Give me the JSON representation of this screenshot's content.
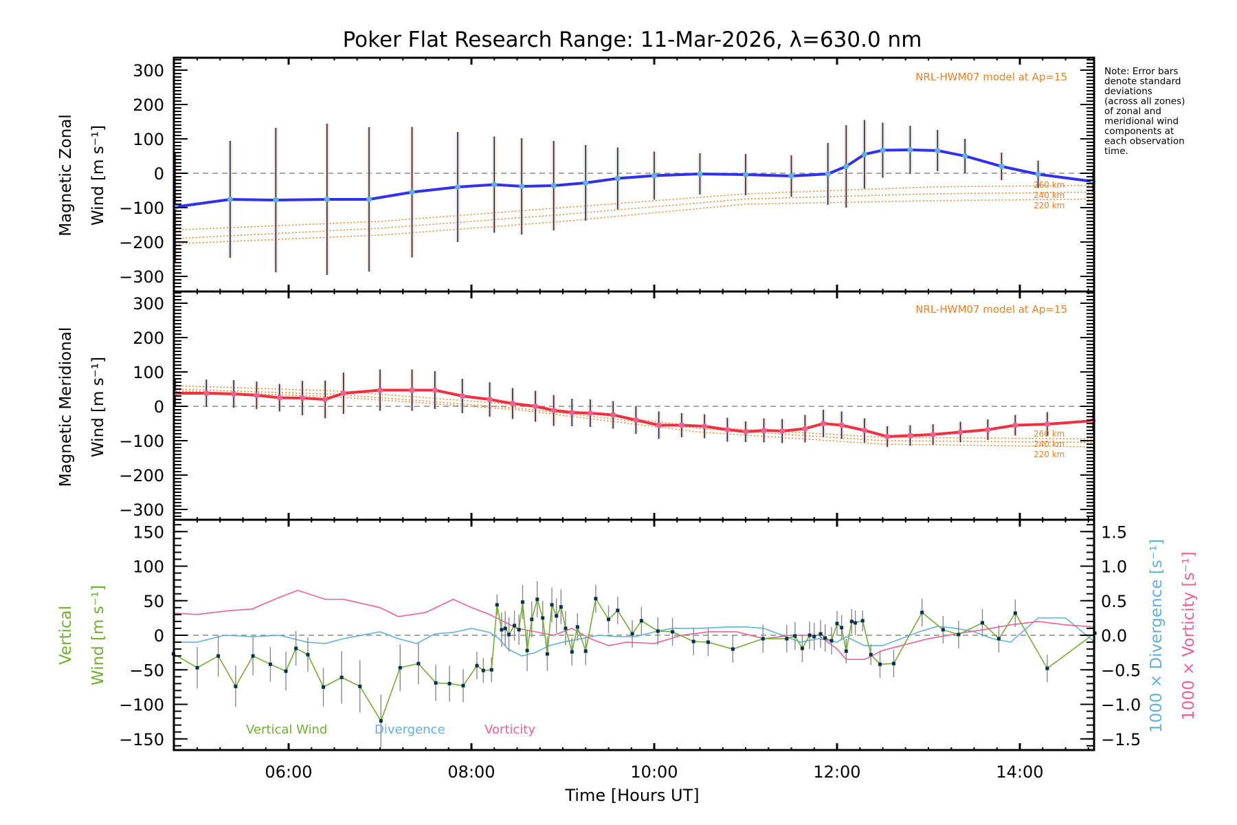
{
  "title": "Poker Flat Research Range: 11-Mar-2026, λ=630.0 nm",
  "note": [
    "Note: Error bars",
    "denote standard",
    "deviations",
    "(across all zones)",
    "of zonal and",
    "meridional wind",
    "components at",
    "each observation",
    "time."
  ],
  "colors": {
    "zonal": "#3030f0",
    "zonal_points": "#60b0e0",
    "meridional": "#f03040",
    "meridional_points": "#f06090",
    "model": "#f08020",
    "vertical": "#70b030",
    "divergence": "#60b0e0",
    "vorticity": "#f06090",
    "errorbar": "#083050",
    "zone_scatter": "#b0b0e0"
  },
  "chart_data": [
    {
      "type": "line",
      "panel": "zonal",
      "ylabel": [
        "Magnetic Zonal",
        "Wind [m s⁻¹]"
      ],
      "ylim": [
        -330,
        330
      ],
      "yticks": [
        -300,
        -200,
        -100,
        0,
        100,
        200,
        300
      ],
      "model_label": "NRL-HWM07 model at Ap=15",
      "series": [
        {
          "name": "Zonal wind",
          "x": [
            4.76,
            5.36,
            5.86,
            6.42,
            6.88,
            7.35,
            7.85,
            8.25,
            8.55,
            8.9,
            9.25,
            9.6,
            10.0,
            10.5,
            11.0,
            11.5,
            11.9,
            12.1,
            12.3,
            12.5,
            12.8,
            13.1,
            13.4,
            13.8,
            14.2,
            14.8
          ],
          "y": [
            -98,
            -76,
            -78,
            -76,
            -76,
            -55,
            -40,
            -33,
            -38,
            -36,
            -28,
            -15,
            -7,
            -2,
            -4,
            -8,
            -2,
            20,
            55,
            67,
            68,
            66,
            50,
            20,
            -3,
            -24
          ],
          "errors": [
            160,
            170,
            210,
            220,
            210,
            190,
            160,
            140,
            140,
            130,
            110,
            90,
            70,
            60,
            60,
            60,
            90,
            120,
            100,
            80,
            70,
            60,
            50,
            40,
            40,
            30
          ]
        },
        {
          "name": "HWM07 260 km",
          "x": [
            4.76,
            7,
            9,
            11,
            13,
            14.8
          ],
          "y": [
            -165,
            -140,
            -100,
            -60,
            -40,
            -35
          ]
        },
        {
          "name": "HWM07 240 km",
          "x": [
            4.76,
            7,
            9,
            11,
            13,
            14.8
          ],
          "y": [
            -190,
            -160,
            -120,
            -75,
            -60,
            -55
          ]
        },
        {
          "name": "HWM07 220 km",
          "x": [
            4.76,
            7,
            9,
            11,
            13,
            14.8
          ],
          "y": [
            -205,
            -180,
            -140,
            -90,
            -80,
            -75
          ]
        }
      ],
      "annotations": [
        "260 km",
        "240 km",
        "220 km"
      ]
    },
    {
      "type": "line",
      "panel": "meridional",
      "ylabel": [
        "Magnetic Meridional",
        "Wind [m s⁻¹]"
      ],
      "ylim": [
        -330,
        330
      ],
      "yticks": [
        -300,
        -200,
        -100,
        0,
        100,
        200,
        300
      ],
      "model_label": "NRL-HWM07 model at Ap=15",
      "series": [
        {
          "name": "Meridional wind",
          "x": [
            4.76,
            5.1,
            5.4,
            5.65,
            5.9,
            6.15,
            6.4,
            6.6,
            7.0,
            7.35,
            7.6,
            7.9,
            8.2,
            8.45,
            8.7,
            8.9,
            9.1,
            9.3,
            9.55,
            9.8,
            10.05,
            10.3,
            10.55,
            10.8,
            11.0,
            11.2,
            11.4,
            11.65,
            11.85,
            12.05,
            12.3,
            12.55,
            12.8,
            13.05,
            13.35,
            13.65,
            13.95,
            14.3,
            14.8
          ],
          "y": [
            38,
            38,
            36,
            32,
            25,
            24,
            20,
            38,
            47,
            47,
            47,
            30,
            20,
            8,
            0,
            -12,
            -18,
            -20,
            -25,
            -40,
            -55,
            -55,
            -58,
            -68,
            -74,
            -70,
            -72,
            -65,
            -50,
            -55,
            -70,
            -88,
            -85,
            -82,
            -75,
            -68,
            -55,
            -52,
            -42
          ],
          "errors": [
            40,
            40,
            40,
            40,
            40,
            50,
            55,
            60,
            60,
            60,
            55,
            50,
            50,
            45,
            45,
            45,
            40,
            40,
            40,
            40,
            40,
            35,
            35,
            35,
            30,
            35,
            35,
            40,
            40,
            40,
            35,
            30,
            30,
            30,
            30,
            30,
            30,
            35,
            30
          ]
        },
        {
          "name": "HWM07 260 km",
          "x": [
            4.76,
            6.5,
            8.5,
            10.5,
            12.5,
            14.8
          ],
          "y": [
            60,
            45,
            5,
            -60,
            -90,
            -95
          ]
        },
        {
          "name": "HWM07 240 km",
          "x": [
            4.76,
            6.5,
            8.5,
            10.5,
            12.5,
            14.8
          ],
          "y": [
            50,
            35,
            -5,
            -65,
            -100,
            -105
          ]
        },
        {
          "name": "HWM07 220 km",
          "x": [
            4.76,
            6.5,
            8.5,
            10.5,
            12.5,
            14.8
          ],
          "y": [
            45,
            28,
            -10,
            -75,
            -110,
            -118
          ]
        }
      ],
      "annotations": [
        "260 km",
        "240 km",
        "220 km"
      ]
    },
    {
      "type": "line",
      "panel": "vertical",
      "ylabel": [
        "Vertical",
        "Wind [m s⁻¹]"
      ],
      "ylabel_right_divergence": "1000 × Divergence [s⁻¹]",
      "ylabel_right_vorticity": "1000 × Vorticity [s⁻¹]",
      "ylim": [
        -165,
        165
      ],
      "yticks": [
        -150,
        -100,
        -50,
        0,
        50,
        100,
        150
      ],
      "y2lim": [
        -1.65,
        1.65
      ],
      "y2ticks": [
        "-1.5",
        "-1.0",
        "-0.5",
        "0.0",
        "0.5",
        "1.0",
        "1.5"
      ],
      "xlabel": "Time [Hours UT]",
      "xlim": [
        4.74,
        14.82
      ],
      "xticks": [
        "06:00",
        "08:00",
        "10:00",
        "12:00",
        "14:00"
      ],
      "xtick_values": [
        6,
        8,
        10,
        12,
        14
      ],
      "legend": [
        "Vertical Wind",
        "Divergence",
        "Vorticity"
      ],
      "legend_position": "bottom-left",
      "series": [
        {
          "name": "Vertical Wind",
          "x": [
            4.74,
            5.0,
            5.23,
            5.42,
            5.61,
            5.8,
            5.97,
            6.08,
            6.21,
            6.38,
            6.58,
            6.78,
            7.01,
            7.22,
            7.42,
            7.61,
            7.76,
            7.91,
            8.06,
            8.13,
            8.22,
            8.28,
            8.33,
            8.37,
            8.41,
            8.47,
            8.52,
            8.56,
            8.61,
            8.66,
            8.72,
            8.78,
            8.83,
            8.88,
            8.93,
            8.98,
            9.03,
            9.1,
            9.16,
            9.25,
            9.36,
            9.5,
            9.6,
            9.76,
            9.86,
            10.04,
            10.2,
            10.43,
            10.59,
            10.86,
            11.19,
            11.45,
            11.54,
            11.62,
            11.7,
            11.75,
            11.82,
            11.87,
            11.94,
            12.0,
            12.05,
            12.1,
            12.16,
            12.2,
            12.28,
            12.37,
            12.47,
            12.62,
            12.93,
            13.16,
            13.33,
            13.59,
            13.77,
            13.95,
            14.3,
            14.82
          ],
          "y": [
            -27,
            -47,
            -30,
            -74,
            -30,
            -42,
            -52,
            -19,
            -28,
            -75,
            -61,
            -74,
            -124,
            -47,
            -41,
            -69,
            -70,
            -73,
            -44,
            -51,
            -50,
            44,
            8,
            10,
            1,
            14,
            8,
            48,
            -22,
            23,
            52,
            25,
            -27,
            44,
            28,
            41,
            10,
            -24,
            12,
            -23,
            53,
            23,
            36,
            2,
            21,
            6,
            5,
            -9,
            -10,
            -20,
            -5,
            -5,
            -1,
            -19,
            0,
            -2,
            2,
            -4,
            -8,
            17,
            11,
            -23,
            20,
            18,
            21,
            -28,
            -42,
            -41,
            33,
            8,
            1,
            18,
            -5,
            32,
            -48,
            3
          ],
          "errors": [
            25,
            30,
            30,
            30,
            28,
            25,
            28,
            25,
            25,
            28,
            38,
            38,
            38,
            34,
            30,
            26,
            26,
            24,
            20,
            18,
            18,
            15,
            25,
            25,
            25,
            22,
            22,
            25,
            30,
            26,
            26,
            25,
            25,
            25,
            25,
            25,
            25,
            20,
            20,
            20,
            20,
            20,
            20,
            20,
            20,
            20,
            20,
            20,
            20,
            20,
            20,
            20,
            20,
            20,
            20,
            20,
            20,
            20,
            20,
            18,
            18,
            18,
            18,
            18,
            15,
            15,
            20,
            20,
            20,
            20,
            20,
            20,
            20,
            20,
            20,
            20
          ]
        },
        {
          "name": "Divergence",
          "x": [
            4.74,
            5.0,
            5.3,
            5.6,
            5.9,
            6.2,
            6.4,
            6.6,
            7.0,
            7.2,
            7.4,
            7.6,
            7.8,
            8.0,
            8.2,
            8.3,
            8.4,
            8.55,
            8.7,
            8.85,
            9.0,
            9.2,
            9.4,
            9.6,
            9.8,
            10.0,
            10.2,
            10.5,
            10.8,
            11.0,
            11.2,
            11.4,
            11.6,
            11.8,
            12.0,
            12.1,
            12.3,
            12.5,
            12.7,
            12.9,
            13.1,
            13.3,
            13.5,
            13.7,
            13.9,
            14.2,
            14.5,
            14.82
          ],
          "y": [
            -0.1,
            -0.1,
            0.0,
            -0.02,
            0.0,
            -0.1,
            -0.12,
            -0.05,
            0.05,
            -0.05,
            -0.12,
            0.02,
            0.04,
            0.1,
            0.04,
            -0.05,
            -0.2,
            -0.3,
            -0.25,
            -0.15,
            -0.1,
            -0.05,
            0.0,
            -0.02,
            -0.02,
            0.05,
            0.1,
            0.1,
            0.12,
            0.12,
            0.1,
            0.0,
            -0.1,
            -0.05,
            -0.1,
            -0.02,
            -0.15,
            -0.15,
            -0.05,
            0.05,
            0.13,
            0.1,
            0.05,
            -0.05,
            -0.1,
            0.25,
            0.25,
            -0.1
          ]
        },
        {
          "name": "Vorticity",
          "x": [
            4.74,
            5.0,
            5.3,
            5.6,
            5.9,
            6.1,
            6.4,
            6.6,
            7.0,
            7.2,
            7.5,
            7.8,
            8.0,
            8.2,
            8.35,
            8.5,
            8.7,
            8.9,
            9.1,
            9.3,
            9.5,
            9.7,
            10.0,
            10.3,
            10.6,
            10.9,
            11.2,
            11.5,
            11.8,
            12.0,
            12.1,
            12.3,
            12.5,
            12.7,
            13.0,
            13.3,
            13.6,
            13.9,
            14.2,
            14.5,
            14.82
          ],
          "y": [
            0.32,
            0.3,
            0.35,
            0.38,
            0.55,
            0.65,
            0.52,
            0.52,
            0.4,
            0.27,
            0.33,
            0.52,
            0.4,
            0.3,
            0.2,
            0.1,
            0.05,
            0.0,
            0.1,
            -0.05,
            -0.15,
            -0.1,
            -0.12,
            0.0,
            0.05,
            0.05,
            -0.05,
            0.0,
            0.0,
            -0.2,
            -0.35,
            -0.35,
            -0.22,
            -0.15,
            -0.05,
            0.02,
            0.08,
            0.15,
            0.2,
            0.15,
            0.12
          ]
        }
      ]
    }
  ]
}
